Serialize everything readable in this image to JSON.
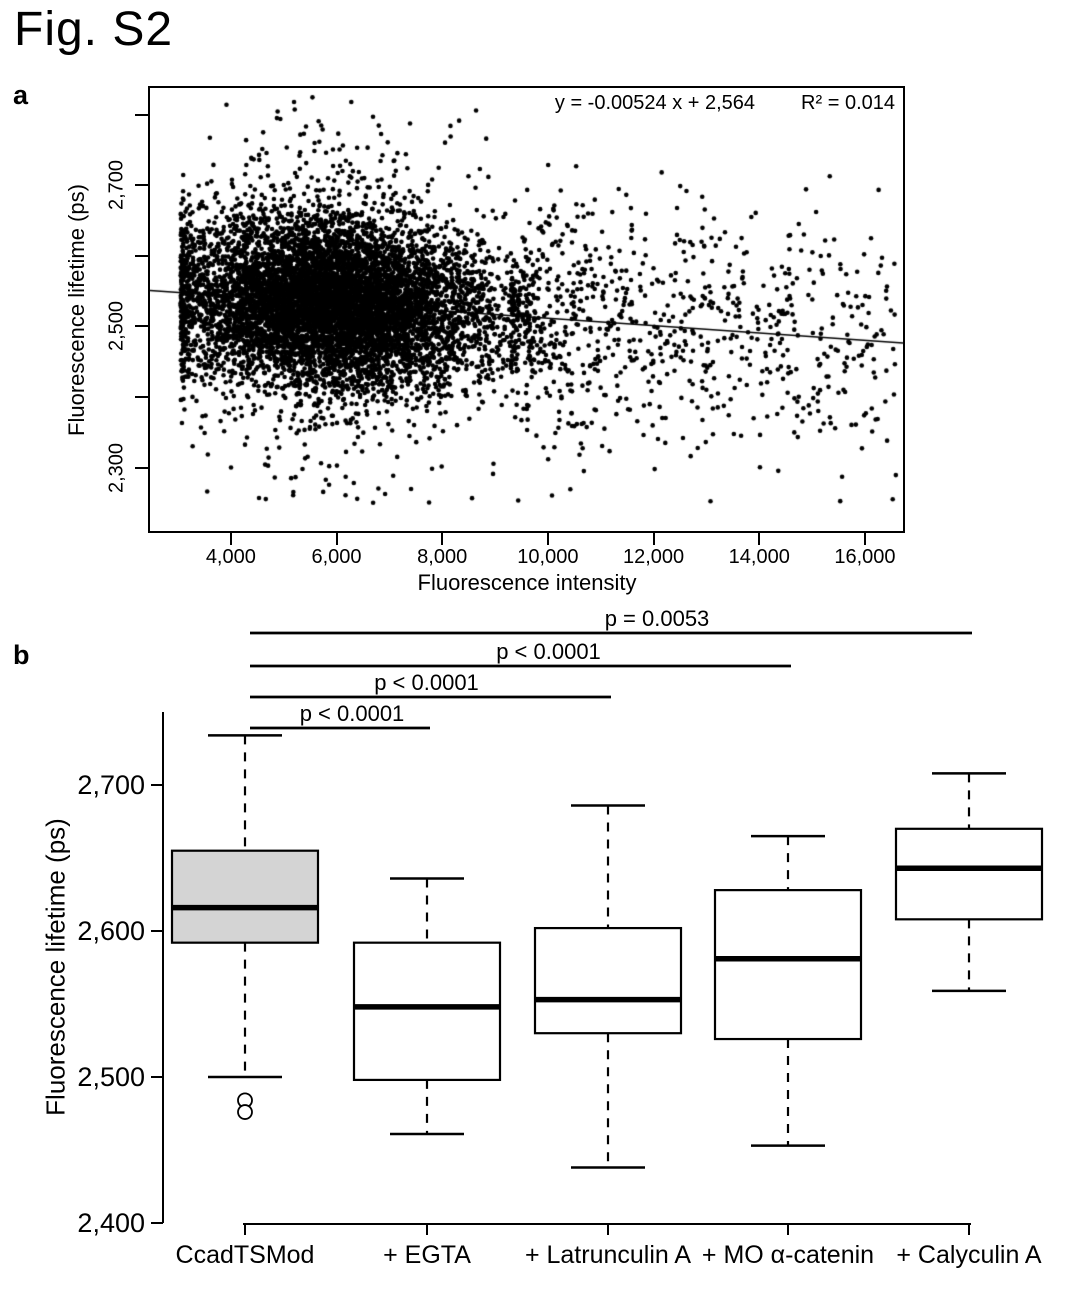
{
  "figure": {
    "title": "Fig. S2"
  },
  "panels": {
    "a": {
      "label": "a"
    },
    "b": {
      "label": "b"
    }
  },
  "colors": {
    "foreground": "#000000",
    "background": "#ffffff",
    "box_fill_gray": "#d4d4d4"
  },
  "chart_data": [
    {
      "id": "a",
      "type": "scatter",
      "xlabel": "Fluorescence intensity",
      "ylabel": "Fluorescence lifetime (ps)",
      "xlim": [
        2470,
        16720
      ],
      "ylim": [
        2210,
        2838
      ],
      "x_ticks": [
        {
          "value": 4000,
          "label": "4,000"
        },
        {
          "value": 6000,
          "label": "6,000"
        },
        {
          "value": 8000,
          "label": "8,000"
        },
        {
          "value": 10000,
          "label": "10,000"
        },
        {
          "value": 12000,
          "label": "12,000"
        },
        {
          "value": 14000,
          "label": "14,000"
        },
        {
          "value": 16000,
          "label": "16,000"
        }
      ],
      "y_ticks": [
        {
          "value": 2300,
          "label": "2,300"
        },
        {
          "value": 2400,
          "label": ""
        },
        {
          "value": 2500,
          "label": "2,500"
        },
        {
          "value": 2600,
          "label": ""
        },
        {
          "value": 2700,
          "label": "2,700"
        },
        {
          "value": 2800,
          "label": ""
        }
      ],
      "annotation": {
        "equation": "y = -0.00524 x + 2,564",
        "r_squared": "R² = 0.014"
      },
      "regression": {
        "slope": -0.00524,
        "intercept": 2564,
        "r2": 0.014
      },
      "point_cloud": {
        "description": "dense cloud of single-cell measurements, core x 3050-10500 centered ~5900, y centered on regression line, sparse tail to x~16600, y extremes ~2250-2825",
        "n": 9000,
        "seed": 42,
        "x_mode": 5900,
        "x_sd": 1500,
        "x_min": 3050,
        "tail_start": 9300,
        "x_max": 16600,
        "y_sd": 58,
        "y_sd_wide": 125,
        "wide_frac": 0.1,
        "point_radius": 2.3,
        "color": "#000000"
      }
    },
    {
      "id": "b",
      "type": "boxplot",
      "ylabel": "Fluorescence lifetime (ps)",
      "ylim": [
        2400,
        2750
      ],
      "y_ticks": [
        {
          "value": 2400,
          "label": "2,400"
        },
        {
          "value": 2500,
          "label": "2,500"
        },
        {
          "value": 2600,
          "label": "2,600"
        },
        {
          "value": 2700,
          "label": "2,700"
        }
      ],
      "categories": [
        "CcadTSMod",
        "+ EGTA",
        "+ Latrunculin A",
        "+ MO α-catenin",
        "+ Calyculin A"
      ],
      "boxes": [
        {
          "label": "CcadTSMod",
          "whisker_low": 2500,
          "q1": 2592,
          "median": 2616,
          "q3": 2655,
          "whisker_high": 2734,
          "outliers": [
            2484,
            2476
          ],
          "fill": "#d4d4d4"
        },
        {
          "label": "+ EGTA",
          "whisker_low": 2461,
          "q1": 2498,
          "median": 2548,
          "q3": 2592,
          "whisker_high": 2636,
          "outliers": [],
          "fill": "#ffffff"
        },
        {
          "label": "+ Latrunculin A",
          "whisker_low": 2438,
          "q1": 2530,
          "median": 2553,
          "q3": 2602,
          "whisker_high": 2686,
          "outliers": [],
          "fill": "#ffffff"
        },
        {
          "label": "+ MO α-catenin",
          "whisker_low": 2453,
          "q1": 2526,
          "median": 2581,
          "q3": 2628,
          "whisker_high": 2665,
          "outliers": [],
          "fill": "#ffffff"
        },
        {
          "label": "+ Calyculin A",
          "whisker_low": 2559,
          "q1": 2608,
          "median": 2643,
          "q3": 2670,
          "whisker_high": 2708,
          "outliers": [],
          "fill": "#ffffff"
        }
      ],
      "significance": [
        {
          "from": 0,
          "to": 4,
          "label": "p = 0.0053"
        },
        {
          "from": 0,
          "to": 3,
          "label": "p < 0.0001"
        },
        {
          "from": 0,
          "to": 2,
          "label": "p < 0.0001"
        },
        {
          "from": 0,
          "to": 1,
          "label": "p < 0.0001"
        }
      ]
    }
  ]
}
